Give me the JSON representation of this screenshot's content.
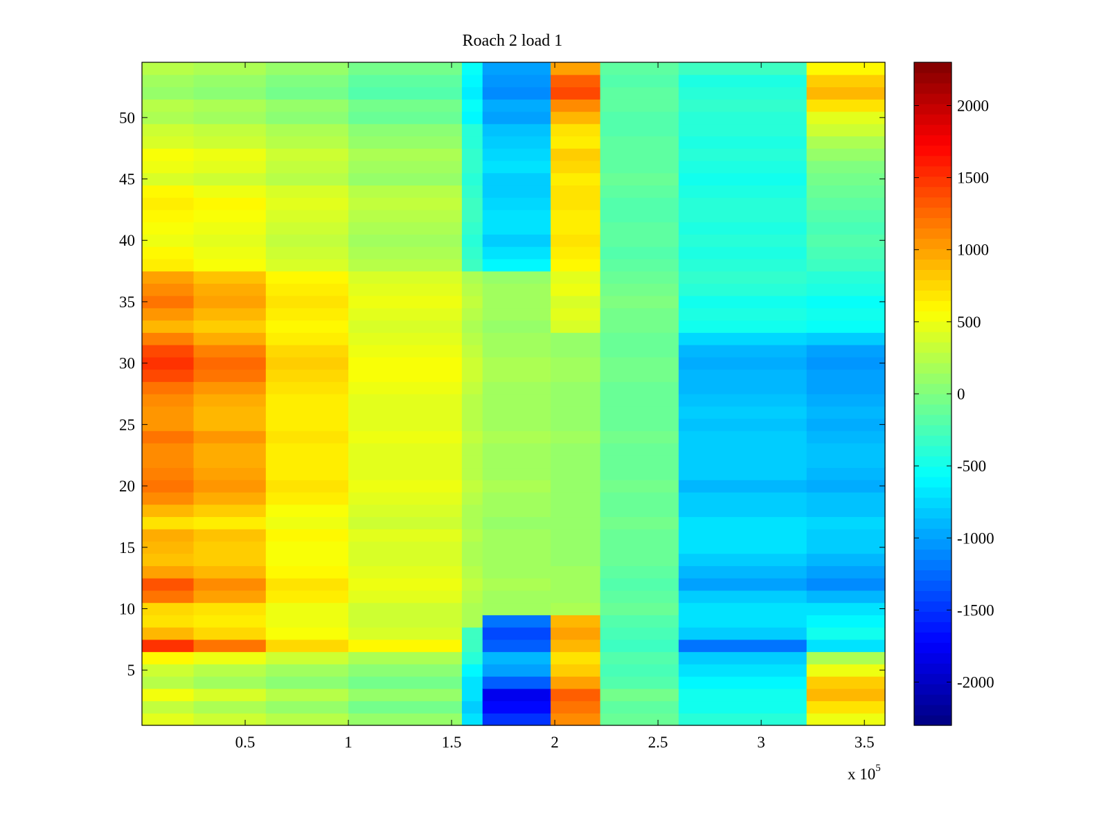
{
  "chart_data": {
    "type": "heatmap",
    "title": "Roach 2 load 1",
    "xlabel": "",
    "ylabel": "",
    "x_multiplier_label": {
      "base": "x 10",
      "exponent": "5"
    },
    "xlim": [
      0,
      360000
    ],
    "ylim": [
      0.5,
      54.5
    ],
    "x_ticks": [
      {
        "value": 50000,
        "label": "0.5"
      },
      {
        "value": 100000,
        "label": "1"
      },
      {
        "value": 150000,
        "label": "1.5"
      },
      {
        "value": 200000,
        "label": "2"
      },
      {
        "value": 250000,
        "label": "2.5"
      },
      {
        "value": 300000,
        "label": "3"
      },
      {
        "value": 350000,
        "label": "3.5"
      }
    ],
    "y_ticks": [
      {
        "value": 5,
        "label": "5"
      },
      {
        "value": 10,
        "label": "10"
      },
      {
        "value": 15,
        "label": "15"
      },
      {
        "value": 20,
        "label": "20"
      },
      {
        "value": 25,
        "label": "25"
      },
      {
        "value": 30,
        "label": "30"
      },
      {
        "value": 35,
        "label": "35"
      },
      {
        "value": 40,
        "label": "40"
      },
      {
        "value": 45,
        "label": "45"
      },
      {
        "value": 50,
        "label": "50"
      }
    ],
    "colorbar": {
      "colormap": "jet",
      "clim": [
        -2300,
        2300
      ],
      "ticks": [
        {
          "value": 2000,
          "label": "2000"
        },
        {
          "value": 1500,
          "label": "1500"
        },
        {
          "value": 1000,
          "label": "1000"
        },
        {
          "value": 500,
          "label": "500"
        },
        {
          "value": 0,
          "label": "0"
        },
        {
          "value": -500,
          "label": "-500"
        },
        {
          "value": -1000,
          "label": "-1000"
        },
        {
          "value": -1500,
          "label": "-1500"
        },
        {
          "value": -2000,
          "label": "-2000"
        }
      ]
    },
    "grid": false,
    "rows": 54,
    "x_segments": [
      {
        "x_start": 0,
        "x_end": 25000,
        "row_values": [
          450,
          300,
          520,
          250,
          350,
          600,
          1500,
          900,
          700,
          750,
          1200,
          1350,
          1000,
          850,
          900,
          950,
          700,
          900,
          1100,
          1200,
          1150,
          1100,
          1100,
          1200,
          1050,
          1050,
          1100,
          1200,
          1400,
          1500,
          1400,
          1150,
          900,
          1050,
          1200,
          1100,
          1000,
          650,
          600,
          500,
          550,
          600,
          650,
          600,
          400,
          500,
          550,
          400,
          350,
          200,
          250,
          100,
          150,
          250
        ]
      },
      {
        "x_start": 25000,
        "x_end": 60000,
        "row_values": [
          350,
          200,
          400,
          150,
          250,
          500,
          1200,
          750,
          650,
          700,
          1000,
          1100,
          900,
          800,
          800,
          850,
          650,
          800,
          950,
          1050,
          1000,
          950,
          950,
          1050,
          900,
          900,
          950,
          1050,
          1200,
          1250,
          1150,
          950,
          800,
          900,
          1000,
          950,
          850,
          550,
          500,
          450,
          500,
          550,
          600,
          500,
          350,
          450,
          500,
          350,
          300,
          150,
          200,
          50,
          100,
          200
        ]
      },
      {
        "x_start": 60000,
        "x_end": 100000,
        "row_values": [
          250,
          100,
          250,
          50,
          150,
          350,
          750,
          550,
          500,
          500,
          650,
          700,
          600,
          550,
          550,
          600,
          500,
          550,
          650,
          700,
          650,
          650,
          650,
          700,
          650,
          650,
          650,
          700,
          750,
          800,
          750,
          650,
          600,
          650,
          700,
          650,
          600,
          400,
          350,
          300,
          350,
          400,
          450,
          400,
          250,
          300,
          350,
          250,
          200,
          50,
          100,
          -50,
          0,
          100
        ]
      },
      {
        "x_start": 100000,
        "x_end": 155000,
        "row_values": [
          100,
          -50,
          100,
          -50,
          50,
          200,
          600,
          400,
          350,
          350,
          450,
          500,
          450,
          400,
          400,
          450,
          350,
          400,
          450,
          500,
          450,
          450,
          450,
          500,
          450,
          450,
          450,
          500,
          550,
          550,
          500,
          450,
          400,
          450,
          500,
          450,
          400,
          250,
          200,
          150,
          200,
          250,
          300,
          250,
          100,
          150,
          200,
          100,
          50,
          -100,
          -50,
          -200,
          -150,
          -50
        ]
      },
      {
        "x_start": 155000,
        "x_end": 165000,
        "row_values": [
          -700,
          -800,
          -700,
          -700,
          -600,
          -400,
          -300,
          -300,
          200,
          200,
          250,
          300,
          250,
          200,
          200,
          250,
          200,
          200,
          250,
          300,
          250,
          250,
          250,
          300,
          250,
          250,
          250,
          300,
          350,
          350,
          300,
          250,
          200,
          250,
          300,
          250,
          200,
          -300,
          -350,
          -400,
          -350,
          -300,
          -300,
          -350,
          -400,
          -350,
          -350,
          -400,
          -400,
          -600,
          -550,
          -650,
          -600,
          -550
        ]
      },
      {
        "x_start": 165000,
        "x_end": 198000,
        "row_values": [
          -1500,
          -1700,
          -1800,
          -1300,
          -1000,
          -900,
          -1300,
          -1400,
          -1200,
          150,
          150,
          200,
          150,
          150,
          150,
          150,
          100,
          150,
          150,
          200,
          150,
          150,
          150,
          200,
          150,
          150,
          150,
          150,
          200,
          200,
          150,
          150,
          100,
          150,
          150,
          150,
          100,
          -600,
          -700,
          -800,
          -700,
          -700,
          -750,
          -800,
          -800,
          -700,
          -750,
          -800,
          -850,
          -1000,
          -950,
          -1100,
          -1050,
          -1000
        ]
      },
      {
        "x_start": 198000,
        "x_end": 222000,
        "row_values": [
          1100,
          1200,
          1300,
          1000,
          800,
          700,
          900,
          1000,
          900,
          200,
          150,
          150,
          150,
          100,
          100,
          100,
          100,
          100,
          100,
          100,
          100,
          100,
          100,
          150,
          100,
          100,
          100,
          100,
          150,
          150,
          100,
          100,
          400,
          450,
          400,
          500,
          450,
          600,
          650,
          700,
          650,
          650,
          700,
          700,
          650,
          750,
          800,
          650,
          700,
          900,
          1100,
          1400,
          1300,
          1000
        ]
      },
      {
        "x_start": 222000,
        "x_end": 260000,
        "row_values": [
          -100,
          -150,
          -50,
          -200,
          -250,
          -200,
          -300,
          -250,
          -200,
          -100,
          -150,
          -200,
          -150,
          -100,
          -100,
          -100,
          -50,
          -100,
          -100,
          -50,
          -100,
          -100,
          -100,
          -50,
          -100,
          -100,
          -100,
          -100,
          -50,
          -50,
          -100,
          -100,
          -50,
          -50,
          0,
          -50,
          -100,
          -150,
          -200,
          -150,
          -150,
          -200,
          -200,
          -150,
          -100,
          -150,
          -150,
          -150,
          -200,
          -200,
          -150,
          -150,
          -200,
          -150
        ]
      },
      {
        "x_start": 260000,
        "x_end": 322000,
        "row_values": [
          -400,
          -500,
          -500,
          -600,
          -700,
          -800,
          -1200,
          -800,
          -700,
          -700,
          -800,
          -1000,
          -900,
          -800,
          -700,
          -700,
          -700,
          -800,
          -800,
          -900,
          -800,
          -800,
          -800,
          -800,
          -850,
          -800,
          -850,
          -900,
          -900,
          -950,
          -900,
          -750,
          -500,
          -450,
          -500,
          -400,
          -350,
          -400,
          -450,
          -400,
          -450,
          -400,
          -400,
          -450,
          -500,
          -450,
          -400,
          -450,
          -400,
          -400,
          -350,
          -400,
          -450,
          -300
        ]
      },
      {
        "x_start": 322000,
        "x_end": 360000,
        "row_values": [
          500,
          700,
          900,
          800,
          500,
          200,
          -700,
          -500,
          -600,
          -700,
          -900,
          -1100,
          -1000,
          -900,
          -800,
          -800,
          -750,
          -850,
          -850,
          -950,
          -900,
          -850,
          -850,
          -900,
          -950,
          -900,
          -950,
          -1000,
          -1000,
          -1050,
          -1000,
          -800,
          -550,
          -500,
          -550,
          -450,
          -400,
          -300,
          -250,
          -200,
          -250,
          -200,
          -150,
          -100,
          -50,
          0,
          100,
          200,
          350,
          450,
          700,
          900,
          800,
          600
        ]
      }
    ]
  }
}
